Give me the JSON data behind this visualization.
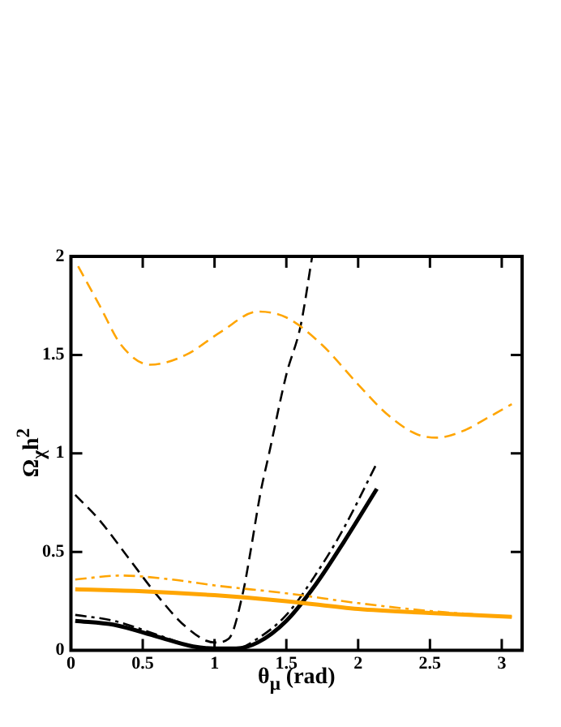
{
  "chart_data": {
    "type": "line",
    "xlabel": "θ$_{μ}$ (rad)",
    "ylabel": "Ω$_{χ}$h$^{2}$",
    "xlim": [
      0,
      3.1416
    ],
    "ylim": [
      0,
      2
    ],
    "xticks": [
      0,
      0.5,
      1,
      1.5,
      2,
      2.5,
      3
    ],
    "yticks": [
      0,
      0.5,
      1,
      1.5,
      2
    ],
    "grid": false,
    "legend": false,
    "marker": "none",
    "series": [
      {
        "color": "#ffa500",
        "line_style": "dashed",
        "x": [
          0.05,
          0.2,
          0.35,
          0.55,
          0.8,
          1.05,
          1.3,
          1.5,
          1.75,
          2.0,
          2.2,
          2.4,
          2.55,
          2.75,
          2.9,
          3.07
        ],
        "values": [
          1.95,
          1.75,
          1.55,
          1.45,
          1.5,
          1.62,
          1.72,
          1.69,
          1.55,
          1.35,
          1.2,
          1.1,
          1.08,
          1.12,
          1.18,
          1.25
        ]
      },
      {
        "color": "#ffa500",
        "line_style": "solid",
        "x": [
          0.03,
          0.5,
          1.0,
          1.5,
          2.0,
          2.5,
          3.07
        ],
        "values": [
          0.31,
          0.3,
          0.28,
          0.25,
          0.21,
          0.19,
          0.17
        ]
      },
      {
        "color": "#ffa500",
        "line_style": "dashdot",
        "x": [
          0.03,
          0.35,
          0.7,
          1.0,
          1.5,
          2.0,
          2.5,
          3.07
        ],
        "values": [
          0.36,
          0.38,
          0.36,
          0.33,
          0.29,
          0.24,
          0.2,
          0.17
        ]
      },
      {
        "color": "#000000",
        "line_style": "solid",
        "x": [
          0.03,
          0.3,
          0.6,
          0.85,
          1.0,
          1.15,
          1.3,
          1.5,
          1.7,
          1.9,
          2.13
        ],
        "values": [
          0.15,
          0.13,
          0.07,
          0.02,
          0.01,
          0.01,
          0.04,
          0.15,
          0.33,
          0.55,
          0.82
        ]
      },
      {
        "color": "#000000",
        "line_style": "dashdot",
        "x": [
          0.03,
          0.3,
          0.6,
          0.85,
          1.0,
          1.15,
          1.3,
          1.5,
          1.7,
          1.9,
          2.13
        ],
        "values": [
          0.18,
          0.15,
          0.08,
          0.02,
          0.01,
          0.01,
          0.06,
          0.18,
          0.38,
          0.62,
          0.95
        ]
      },
      {
        "color": "#000000",
        "line_style": "dashed",
        "x": [
          0.03,
          0.2,
          0.4,
          0.6,
          0.8,
          1.0,
          1.1,
          1.2,
          1.25,
          1.32,
          1.38,
          1.5,
          1.6,
          1.68
        ],
        "values": [
          0.79,
          0.66,
          0.47,
          0.28,
          0.12,
          0.04,
          0.06,
          0.3,
          0.5,
          0.8,
          1.0,
          1.4,
          1.65,
          2.0
        ]
      }
    ]
  }
}
